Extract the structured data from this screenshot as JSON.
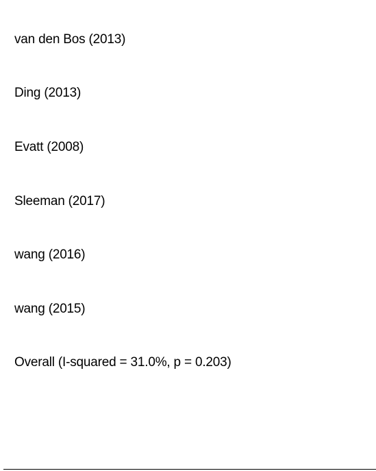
{
  "chart_data": {
    "type": "forest",
    "studies": [
      {
        "label": "van den Bos (2013)"
      },
      {
        "label": "Ding (2013)"
      },
      {
        "label": "Evatt (2008)"
      },
      {
        "label": "Sleeman (2017)"
      },
      {
        "label": "wang (2016)"
      },
      {
        "label": "wang (2015)"
      }
    ],
    "overall": {
      "label": "Overall  (I-squared = 31.0%, p = 0.203)",
      "i_squared_percent": 31.0,
      "p_value": 0.203
    }
  }
}
